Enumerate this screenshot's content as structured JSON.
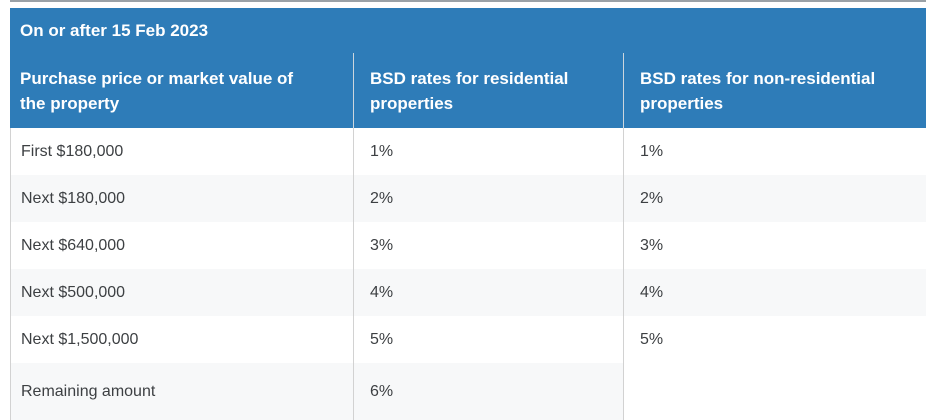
{
  "theme": {
    "header_bg": "#2e7cb8",
    "header_text": "#ffffff",
    "row_bg": "#ffffff",
    "row_alt_bg": "#f7f8f9",
    "body_text": "#3d4043",
    "divider": "#d2d2d2",
    "header_divider": "#ccd6dd",
    "top_rule": "#9aa1a7"
  },
  "table": {
    "title": "On or after 15 Feb 2023",
    "columns": [
      {
        "label": "Purchase price or market value of the property"
      },
      {
        "label": "BSD rates for residential properties"
      },
      {
        "label": "BSD rates for non-residential properties"
      }
    ],
    "rows": [
      {
        "tier": "First $180,000",
        "residential": "1%",
        "non_residential": "1%"
      },
      {
        "tier": "Next $180,000",
        "residential": "2%",
        "non_residential": "2%"
      },
      {
        "tier": "Next $640,000",
        "residential": "3%",
        "non_residential": "3%"
      },
      {
        "tier": "Next $500,000",
        "residential": "4%",
        "non_residential": "4%"
      },
      {
        "tier": "Next $1,500,000",
        "residential": "5%",
        "non_residential": "5%"
      },
      {
        "tier": "Remaining amount",
        "residential": "6%",
        "non_residential": ""
      }
    ]
  }
}
